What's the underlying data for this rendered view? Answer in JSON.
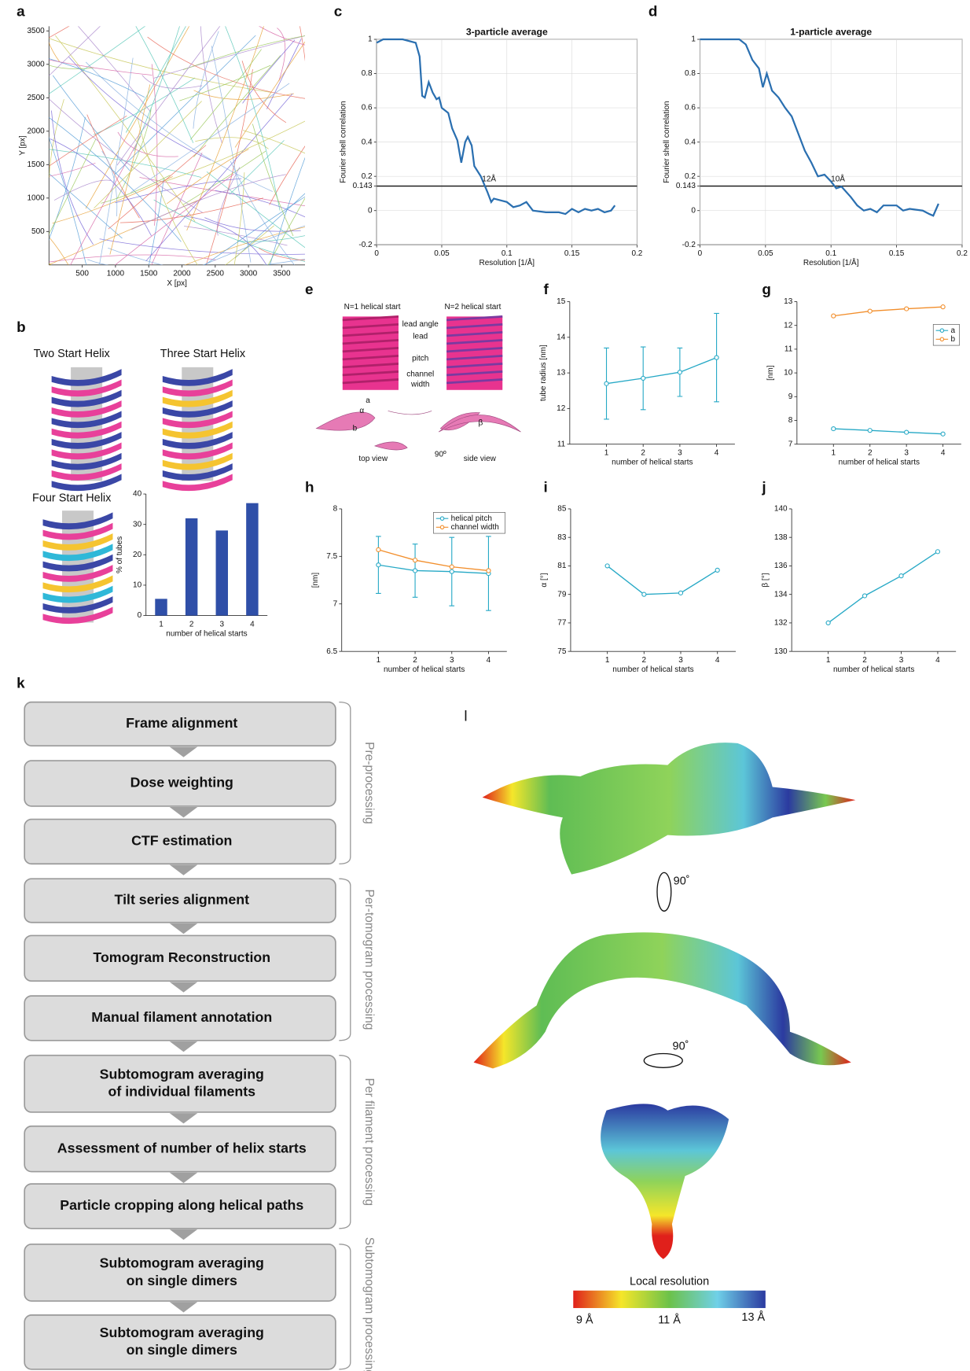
{
  "chart_data": [
    {
      "panel": "a",
      "type": "traces",
      "xlabel": "X [px]",
      "ylabel": "Y [px]",
      "xlim": [
        0,
        3850
      ],
      "ylim": [
        0,
        3570
      ],
      "xticks": [
        500,
        1000,
        1500,
        2000,
        2500,
        3000,
        3500
      ],
      "yticks": [
        500,
        1000,
        1500,
        2000,
        2500,
        3000,
        3500
      ],
      "grid": false
    },
    {
      "panel": "c",
      "type": "line",
      "title": "3-particle average",
      "xlabel": "Resolution [1/Å]",
      "ylabel": "Fourier shell correlation",
      "x": [
        0,
        0.005,
        0.01,
        0.02,
        0.03,
        0.033,
        0.035,
        0.037,
        0.04,
        0.043,
        0.046,
        0.048,
        0.05,
        0.055,
        0.058,
        0.062,
        0.065,
        0.068,
        0.07,
        0.073,
        0.075,
        0.08,
        0.085,
        0.088,
        0.09,
        0.1,
        0.105,
        0.11,
        0.115,
        0.12,
        0.13,
        0.14,
        0.145,
        0.15,
        0.155,
        0.16,
        0.165,
        0.17,
        0.175,
        0.18,
        0.183
      ],
      "series": [
        {
          "color": "#2a6fb0",
          "values": [
            0.98,
            1,
            1,
            1,
            0.98,
            0.9,
            0.67,
            0.66,
            0.75,
            0.69,
            0.65,
            0.66,
            0.6,
            0.57,
            0.48,
            0.41,
            0.28,
            0.4,
            0.43,
            0.38,
            0.26,
            0.2,
            0.11,
            0.05,
            0.07,
            0.05,
            0.02,
            0.03,
            0.05,
            0,
            -0.01,
            -0.01,
            -0.02,
            0.01,
            -0.01,
            0.01,
            0,
            0.01,
            -0.01,
            0,
            0.03
          ]
        }
      ],
      "threshold": 0.143,
      "annotation": "12Å",
      "xlim": [
        0,
        0.2
      ],
      "ylim": [
        -0.2,
        1
      ],
      "xticks": [
        0,
        0.05,
        0.1,
        0.15,
        0.2
      ],
      "yticks": [
        -0.2,
        0,
        0.143,
        0.2,
        0.4,
        0.6,
        0.8,
        1
      ],
      "grid": true
    },
    {
      "panel": "d",
      "type": "line",
      "title": "1-particle average",
      "xlabel": "Resolution [1/Å]",
      "ylabel": "Fourier shell correlation",
      "x": [
        0,
        0.03,
        0.035,
        0.04,
        0.045,
        0.048,
        0.051,
        0.055,
        0.06,
        0.065,
        0.07,
        0.075,
        0.08,
        0.085,
        0.09,
        0.095,
        0.1,
        0.104,
        0.108,
        0.115,
        0.12,
        0.125,
        0.13,
        0.135,
        0.14,
        0.15,
        0.155,
        0.16,
        0.17,
        0.175,
        0.178,
        0.182
      ],
      "series": [
        {
          "color": "#2a6fb0",
          "values": [
            1,
            1,
            0.97,
            0.88,
            0.83,
            0.72,
            0.8,
            0.7,
            0.66,
            0.6,
            0.55,
            0.45,
            0.35,
            0.28,
            0.2,
            0.21,
            0.17,
            0.13,
            0.14,
            0.08,
            0.03,
            0,
            0.01,
            -0.01,
            0.03,
            0.03,
            0,
            0.01,
            0,
            -0.02,
            -0.03,
            0.04
          ]
        }
      ],
      "threshold": 0.143,
      "annotation": "10Å",
      "xlim": [
        0,
        0.2
      ],
      "ylim": [
        -0.2,
        1
      ],
      "xticks": [
        0,
        0.05,
        0.1,
        0.15,
        0.2
      ],
      "yticks": [
        -0.2,
        0,
        0.143,
        0.2,
        0.4,
        0.6,
        0.8,
        1
      ],
      "grid": true
    },
    {
      "type": "bar",
      "xlabel": "number of helical starts",
      "ylabel": "% of tubes",
      "categories": [
        "1",
        "2",
        "3",
        "4"
      ],
      "values": [
        5.5,
        32,
        28,
        37
      ],
      "color": "#2f4fa8",
      "ylim": [
        0,
        40
      ],
      "yticks": [
        0,
        10,
        20,
        30,
        40
      ],
      "grid": false
    },
    {
      "panel": "f",
      "type": "line",
      "markers": true,
      "xlabel": "number of helical starts",
      "ylabel": "tube radius [nm]",
      "x": [
        1,
        2,
        3,
        4
      ],
      "series": [
        {
          "color": "#27a9c6",
          "values": [
            12.7,
            12.85,
            13.02,
            13.43
          ],
          "errors": [
            1.0,
            0.88,
            0.68,
            1.24
          ]
        }
      ],
      "xlim": [
        0,
        4.5
      ],
      "ylim": [
        11,
        15
      ],
      "xticks": [
        1,
        2,
        3,
        4
      ],
      "yticks": [
        11,
        12,
        13,
        14,
        15
      ],
      "grid": false
    },
    {
      "panel": "g",
      "type": "line",
      "markers": true,
      "xlabel": "number of helical starts",
      "ylabel": "[nm]",
      "x": [
        1,
        2,
        3,
        4
      ],
      "series": [
        {
          "name": "a",
          "color": "#27a9c6",
          "values": [
            7.65,
            7.58,
            7.5,
            7.43
          ]
        },
        {
          "name": "b",
          "color": "#f28e2b",
          "values": [
            12.4,
            12.6,
            12.7,
            12.78
          ]
        }
      ],
      "legend": "upper right",
      "xlim": [
        0,
        4.5
      ],
      "ylim": [
        7,
        13
      ],
      "xticks": [
        1,
        2,
        3,
        4
      ],
      "yticks": [
        7,
        8,
        9,
        10,
        11,
        12,
        13
      ],
      "grid": false
    },
    {
      "panel": "h",
      "type": "line",
      "markers": true,
      "xlabel": "number of helical starts",
      "ylabel": "[nm]",
      "x": [
        1,
        2,
        3,
        4
      ],
      "series": [
        {
          "name": "helical pitch",
          "color": "#27a9c6",
          "values": [
            7.41,
            7.35,
            7.34,
            7.32
          ],
          "errors": [
            0.3,
            0.28,
            0.36,
            0.39
          ]
        },
        {
          "name": "channel width",
          "color": "#f28e2b",
          "values": [
            7.57,
            7.46,
            7.39,
            7.35
          ]
        }
      ],
      "legend": "upper right",
      "xlim": [
        0,
        4.5
      ],
      "ylim": [
        6.5,
        8
      ],
      "xticks": [
        1,
        2,
        3,
        4
      ],
      "yticks": [
        6.5,
        7,
        7.5,
        8
      ],
      "grid": false
    },
    {
      "panel": "i",
      "type": "line",
      "markers": true,
      "xlabel": "number of helical starts",
      "ylabel": "α [°]",
      "x": [
        1,
        2,
        3,
        4
      ],
      "series": [
        {
          "color": "#27a9c6",
          "values": [
            81,
            79,
            79.1,
            80.7
          ]
        }
      ],
      "xlim": [
        0,
        4.5
      ],
      "ylim": [
        75,
        85
      ],
      "xticks": [
        1,
        2,
        3,
        4
      ],
      "yticks": [
        75,
        77,
        79,
        81,
        83,
        85
      ],
      "grid": false
    },
    {
      "panel": "j",
      "type": "line",
      "markers": true,
      "xlabel": "number of helical starts",
      "ylabel": "β [°]",
      "x": [
        1,
        2,
        3,
        4
      ],
      "series": [
        {
          "color": "#27a9c6",
          "values": [
            132,
            133.9,
            135.3,
            137
          ]
        }
      ],
      "xlim": [
        0,
        4.5
      ],
      "ylim": [
        130,
        140
      ],
      "xticks": [
        1,
        2,
        3,
        4
      ],
      "yticks": [
        130,
        132,
        134,
        136,
        138,
        140
      ],
      "grid": false
    }
  ],
  "panel_b": {
    "label": "b",
    "helices": [
      "Two Start Helix",
      "Three Start Helix",
      "Four Start Helix"
    ]
  },
  "panel_e": {
    "label": "e",
    "left_title": "N=1 helical start",
    "right_title": "N=2 helical start",
    "terms": [
      "lead angle",
      "lead",
      "pitch"
    ],
    "channel_width": [
      "channel",
      "width"
    ],
    "lattice": [
      "a",
      "α",
      "b",
      "β"
    ],
    "views": [
      "top view",
      "side view"
    ],
    "rotation": "90º"
  },
  "panel_k": {
    "label": "k",
    "steps": [
      [
        "Frame alignment"
      ],
      [
        "Dose weighting"
      ],
      [
        "CTF estimation"
      ],
      [
        "Tilt series alignment"
      ],
      [
        "Tomogram Reconstruction"
      ],
      [
        "Manual filament annotation"
      ],
      [
        "Subtomogram averaging",
        "of individual filaments"
      ],
      [
        "Assessment of number of helix starts"
      ],
      [
        "Particle cropping along helical paths"
      ],
      [
        "Subtomogram averaging",
        "on single dimers"
      ],
      [
        "Subtomogram averaging",
        "on single dimers"
      ]
    ],
    "groups": [
      "Pre-processing",
      "Per-tomogram processing",
      "Per filament processing",
      "Subtomogram processing"
    ]
  },
  "panel_l": {
    "label": "l",
    "rotations": [
      "90˚",
      "90˚"
    ],
    "colorbar_title": "Local resolution",
    "colorbar_labels": [
      "9 Å",
      "11 Å",
      "13 Å"
    ]
  }
}
